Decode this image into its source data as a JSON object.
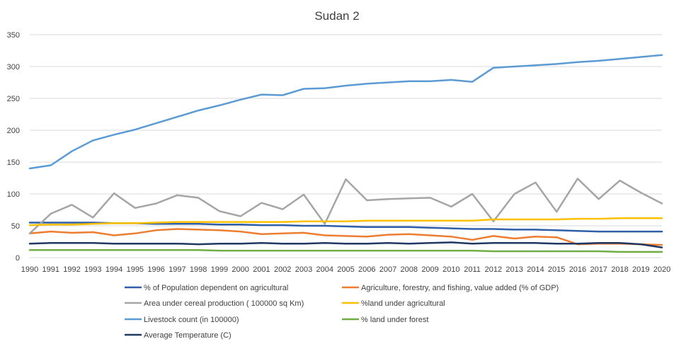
{
  "chart_data": {
    "type": "line",
    "title": "Sudan 2",
    "xlabel": "",
    "ylabel": "",
    "ylim": [
      0,
      350
    ],
    "y_ticks": [
      0,
      50,
      100,
      150,
      200,
      250,
      300,
      350
    ],
    "grid": true,
    "legend_position": "bottom",
    "x": [
      "1990",
      "1991",
      "1992",
      "1993",
      "1994",
      "1995",
      "1996",
      "1997",
      "1998",
      "1999",
      "2000",
      "2001",
      "2002",
      "2003",
      "2004",
      "2005",
      "2006",
      "2007",
      "2008",
      "2009",
      "2010",
      "2011",
      "2012",
      "2013",
      "2014",
      "2015",
      "2016",
      "2017",
      "2018",
      "2019",
      "2020"
    ],
    "series": [
      {
        "name": "% of Population dependent on agricultural",
        "color": "#2e5fa8",
        "values": [
          55,
          55,
          55,
          55,
          54,
          54,
          53,
          53,
          53,
          52,
          52,
          51,
          51,
          50,
          50,
          49,
          48,
          48,
          48,
          47,
          46,
          45,
          45,
          44,
          44,
          43,
          42,
          41,
          41,
          41,
          41
        ]
      },
      {
        "name": "Agriculture, forestry, and fishing, value added (% of GDP)",
        "color": "#ed7d31",
        "values": [
          38,
          41,
          39,
          40,
          35,
          38,
          43,
          45,
          44,
          43,
          41,
          37,
          38,
          39,
          35,
          34,
          33,
          36,
          37,
          35,
          33,
          28,
          34,
          30,
          33,
          32,
          21,
          22,
          22,
          21,
          20
        ]
      },
      {
        "name": "Area under cereal production ( 100000 sq Km)",
        "color": "#a5a5a5",
        "values": [
          38,
          69,
          83,
          63,
          101,
          78,
          85,
          98,
          94,
          73,
          65,
          86,
          76,
          99,
          53,
          123,
          90,
          92,
          93,
          94,
          80,
          100,
          57,
          100,
          118,
          72,
          124,
          92,
          121,
          102,
          85
        ]
      },
      {
        "name": "%land under agricultural",
        "color": "#ffc000",
        "values": [
          51,
          52,
          52,
          53,
          54,
          54,
          55,
          56,
          56,
          56,
          56,
          56,
          56,
          57,
          57,
          57,
          58,
          58,
          58,
          58,
          58,
          58,
          60,
          60,
          60,
          60,
          61,
          61,
          62,
          62,
          62
        ]
      },
      {
        "name": "Livestock count (in 100000)",
        "color": "#5b9bd5",
        "values": [
          140,
          145,
          167,
          184,
          193,
          201,
          211,
          221,
          231,
          239,
          248,
          256,
          255,
          265,
          266,
          270,
          273,
          275,
          277,
          277,
          279,
          276,
          298,
          300,
          302,
          304,
          307,
          309,
          312,
          315,
          318
        ]
      },
      {
        "name": "% land under forest",
        "color": "#70ad47",
        "values": [
          12,
          12,
          12,
          12,
          12,
          12,
          12,
          12,
          12,
          11,
          11,
          11,
          11,
          11,
          11,
          11,
          11,
          11,
          11,
          11,
          11,
          11,
          10,
          10,
          10,
          10,
          10,
          10,
          9,
          9,
          9
        ]
      },
      {
        "name": "Average Temperature (C)",
        "color": "#203864",
        "values": [
          22,
          23,
          23,
          23,
          22,
          22,
          22,
          22,
          21,
          22,
          22,
          23,
          22,
          22,
          23,
          22,
          22,
          23,
          22,
          23,
          24,
          22,
          23,
          23,
          23,
          22,
          22,
          23,
          23,
          21,
          16
        ]
      }
    ]
  }
}
